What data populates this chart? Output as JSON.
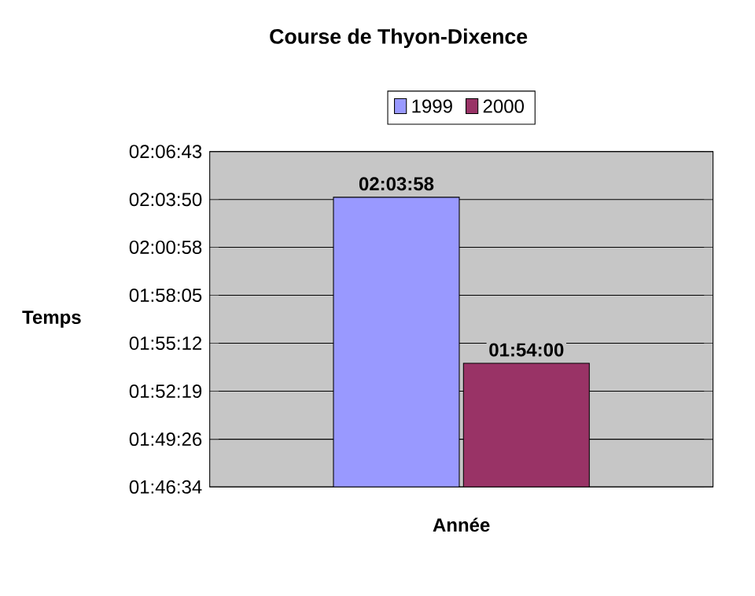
{
  "chart_data": {
    "type": "bar",
    "title": "Course de Thyon-Dixence",
    "xlabel": "Année",
    "ylabel": "Temps",
    "categories": [
      null
    ],
    "series": [
      {
        "name": "1999",
        "color": "#9999ff",
        "values": [
          7438
        ],
        "value_labels": [
          "02:03:58"
        ]
      },
      {
        "name": "2000",
        "color": "#993366",
        "values": [
          6840
        ],
        "value_labels": [
          "01:54:00"
        ]
      }
    ],
    "ylim": [
      6394,
      7603
    ],
    "yticks": [
      {
        "value": 6394,
        "label": "01:46:34"
      },
      {
        "value": 6566,
        "label": "01:49:26"
      },
      {
        "value": 6739,
        "label": "01:52:19"
      },
      {
        "value": 6912,
        "label": "01:55:12"
      },
      {
        "value": 7085,
        "label": "01:58:05"
      },
      {
        "value": 7258,
        "label": "02:00:58"
      },
      {
        "value": 7430,
        "label": "02:03:50"
      },
      {
        "value": 7603,
        "label": "02:06:43"
      }
    ],
    "grid": "y",
    "legend": "top",
    "tick_labels": "y"
  }
}
